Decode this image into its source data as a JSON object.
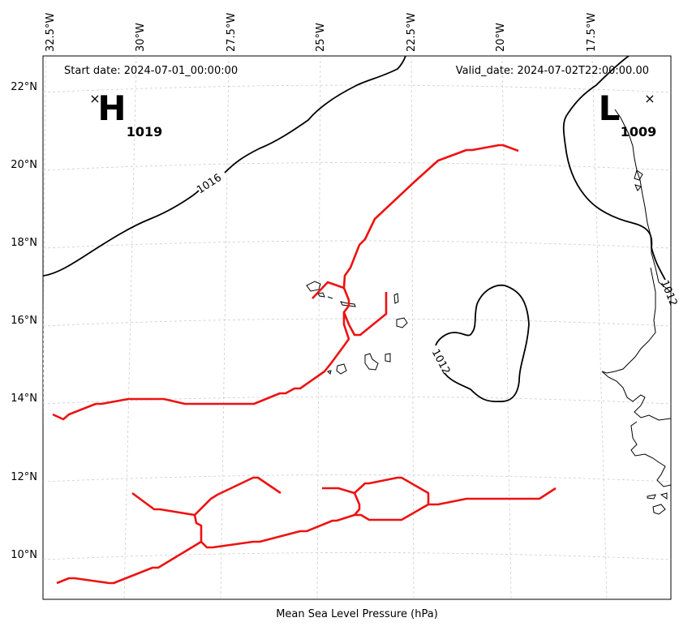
{
  "map": {
    "start_date": "Start date: 2024-07-01_00:00:00",
    "valid_date": "Valid_date: 2024-07-02T22:00:00.00",
    "caption": "Mean Sea Level Pressure (hPa)",
    "lon_labels": [
      "32.5°W",
      "30°W",
      "27.5°W",
      "25°W",
      "22.5°W",
      "20°W",
      "17.5°W"
    ],
    "lat_labels": [
      "22°N",
      "20°N",
      "18°N",
      "16°N",
      "14°N",
      "12°N",
      "10°N"
    ],
    "high": {
      "letter": "H",
      "value": "1019",
      "marker": "×"
    },
    "low": {
      "letter": "L",
      "value": "1009",
      "marker": "×"
    },
    "isobar_labels": [
      "1016",
      "1012",
      "1012"
    ],
    "colors": {
      "isobar": "#000000",
      "front": "#ee1111",
      "grid": "#cccccc",
      "coast": "#000000"
    },
    "icons": {
      "pressure_center_marker": "x-mark"
    }
  }
}
